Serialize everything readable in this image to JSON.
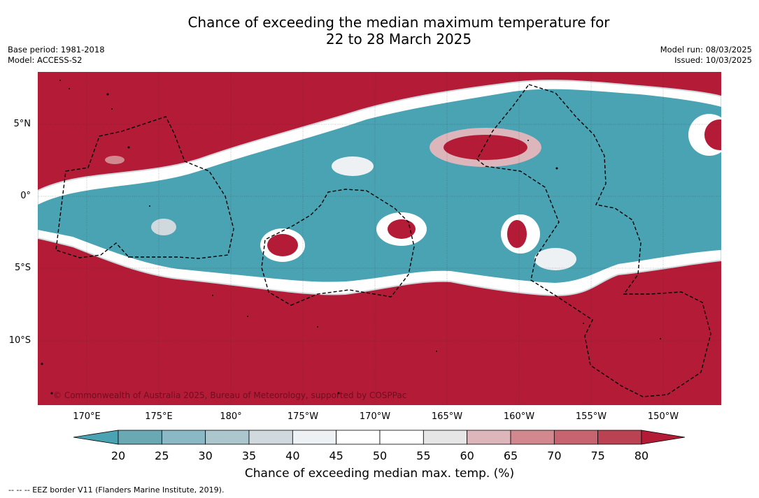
{
  "title_line1": "Chance of exceeding the median maximum temperature for",
  "title_line2": "22 to 28 March 2025",
  "base_period": "Base period: 1981-2018",
  "model": "Model: ACCESS-S2",
  "model_run": "Model run: 08/03/2025",
  "issued": "Issued: 10/03/2025",
  "lat_labels": [
    "5°N",
    "0°",
    "5°S",
    "10°S"
  ],
  "lon_labels": [
    "170°E",
    "175°E",
    "180°",
    "175°W",
    "170°W",
    "165°W",
    "160°W",
    "155°W",
    "150°W"
  ],
  "copyright": "© Commonwealth of Australia 2025, Bureau of Meteorology, supported by COSPPac",
  "colorbar": {
    "title": "Chance of exceeding median max. temp. (%)",
    "ticks": [
      "20",
      "25",
      "30",
      "35",
      "40",
      "45",
      "50",
      "55",
      "60",
      "65",
      "70",
      "75",
      "80"
    ],
    "colors": [
      "#6aa8b3",
      "#8ab9c5",
      "#abc6cc",
      "#d0d9de",
      "#edf1f4",
      "#ffffff",
      "#ffffff",
      "#e6e6e6",
      "#ddb6bc",
      "#d1888f",
      "#c66470",
      "#ba4253"
    ],
    "below_color": "#4aa3b3",
    "above_color": "#b31b37"
  },
  "legend_note": "--  --  -- EEZ border V11 (Flanders Marine Institute, 2019).",
  "map_colors": {
    "warm": "#b31b37",
    "cool": "#4aa3b3",
    "neutral": "#ffffff",
    "light_warm": "#d1888f",
    "light_cool": "#d0d9de"
  }
}
